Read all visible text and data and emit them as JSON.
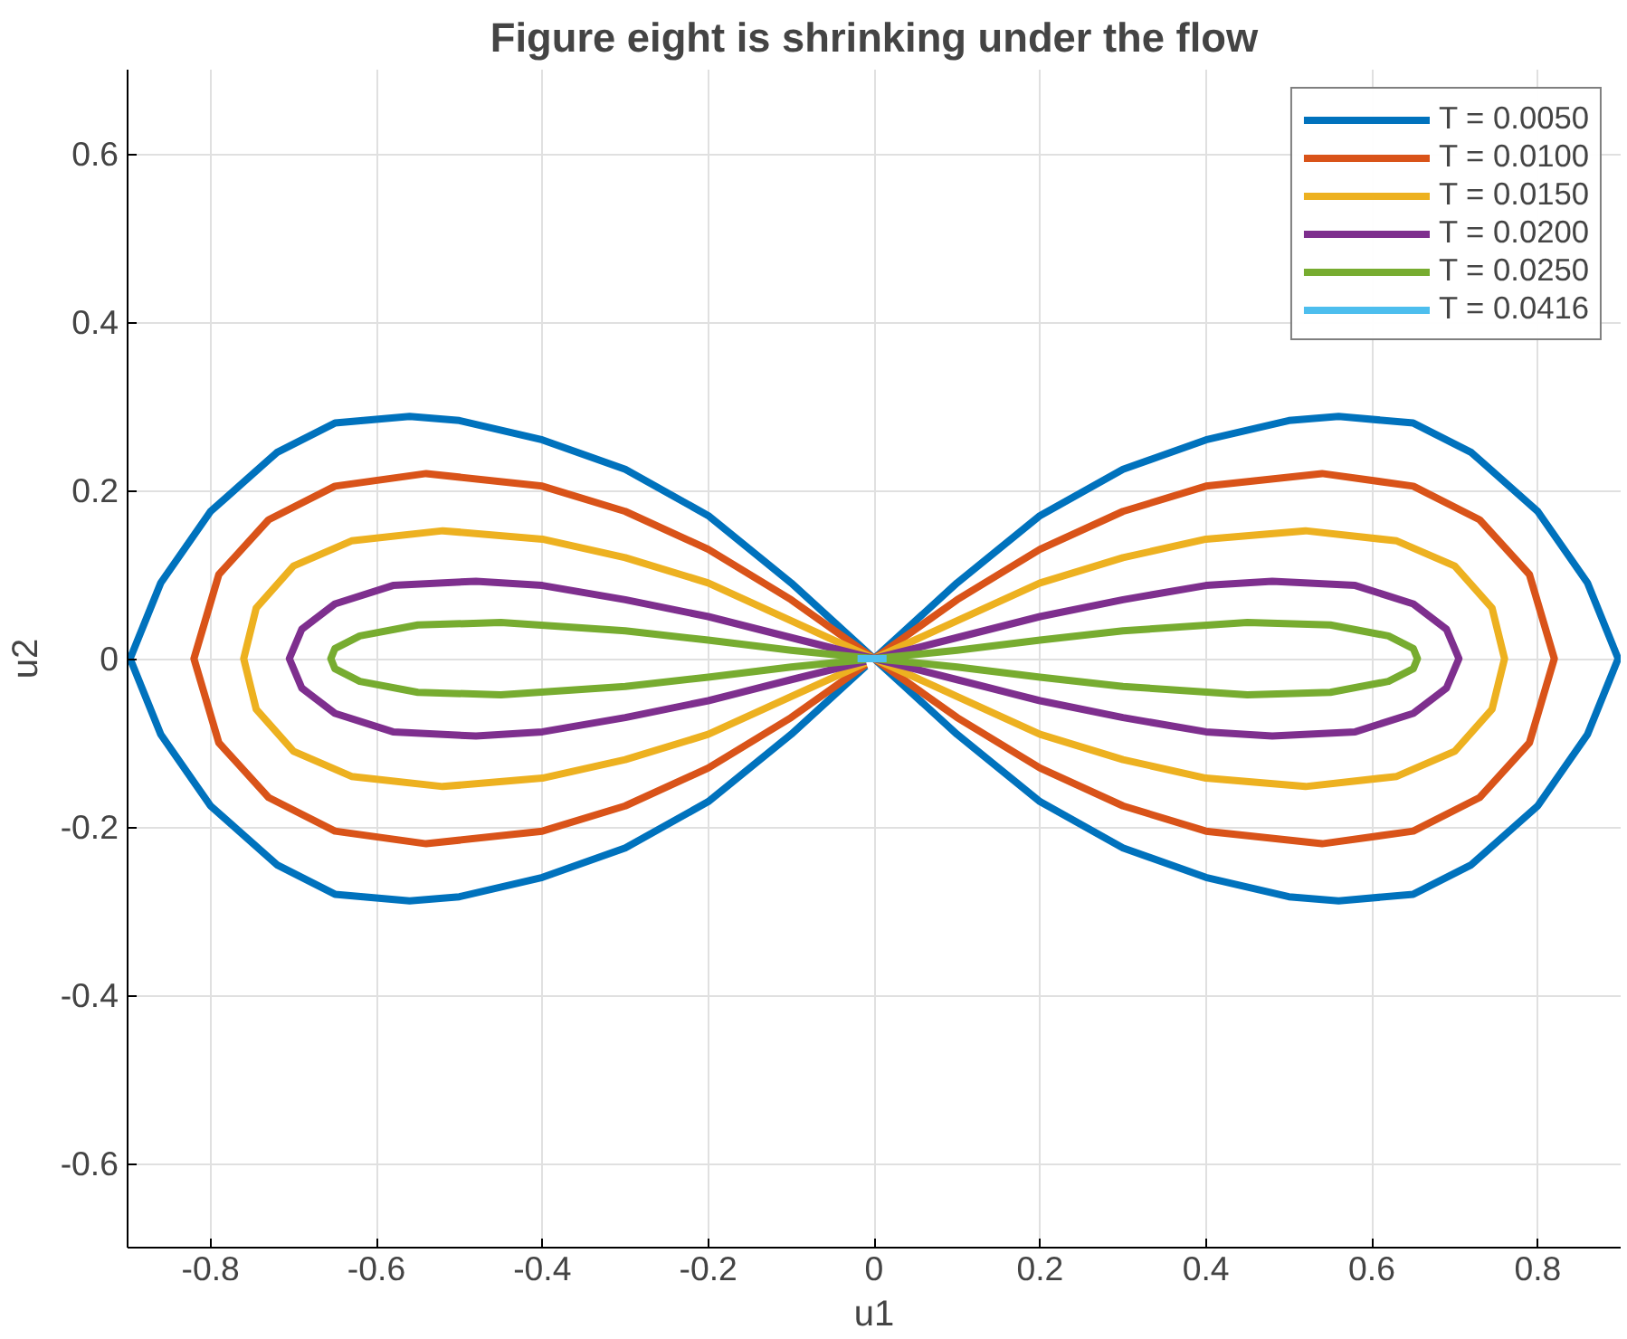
{
  "chart_data": {
    "type": "line",
    "title": "Figure eight is shrinking under the flow",
    "xlabel": "u1",
    "ylabel": "u2",
    "xlim": [
      -0.9,
      0.9
    ],
    "ylim": [
      -0.7,
      0.7
    ],
    "xticks": [
      -0.8,
      -0.6,
      -0.4,
      -0.2,
      0,
      0.2,
      0.4,
      0.6,
      0.8
    ],
    "yticks": [
      -0.6,
      -0.4,
      -0.2,
      0,
      0.2,
      0.4,
      0.6
    ],
    "grid": true,
    "legend": "top right",
    "line_style": "solid",
    "marker": "none",
    "series": [
      {
        "name": "T = 0.0050",
        "color": "#0072bd",
        "x": [
          0,
          0.1,
          0.2,
          0.3,
          0.4,
          0.5,
          0.56,
          0.65,
          0.72,
          0.8,
          0.86,
          0.897,
          0.86,
          0.8,
          0.72,
          0.65,
          0.56,
          0.5,
          0.4,
          0.3,
          0.2,
          0.1,
          0,
          -0.1,
          -0.2,
          -0.3,
          -0.4,
          -0.5,
          -0.56,
          -0.65,
          -0.72,
          -0.8,
          -0.86,
          -0.897,
          -0.86,
          -0.8,
          -0.72,
          -0.65,
          -0.56,
          -0.5,
          -0.4,
          -0.3,
          -0.2,
          -0.1,
          -0.01
        ],
        "values": [
          0,
          0.09,
          0.17,
          0.225,
          0.26,
          0.283,
          0.288,
          0.28,
          0.245,
          0.175,
          0.09,
          0,
          -0.09,
          -0.175,
          -0.245,
          -0.28,
          -0.288,
          -0.283,
          -0.26,
          -0.225,
          -0.17,
          -0.09,
          0,
          0.09,
          0.17,
          0.225,
          0.26,
          0.283,
          0.288,
          0.28,
          0.245,
          0.175,
          0.09,
          0,
          -0.09,
          -0.175,
          -0.245,
          -0.28,
          -0.288,
          -0.283,
          -0.26,
          -0.225,
          -0.17,
          -0.09,
          -0.009
        ]
      },
      {
        "name": "T = 0.0100",
        "color": "#d95319",
        "x": [
          0,
          0.1,
          0.2,
          0.3,
          0.4,
          0.54,
          0.65,
          0.73,
          0.79,
          0.82,
          0.79,
          0.73,
          0.65,
          0.54,
          0.4,
          0.3,
          0.2,
          0.1,
          0,
          -0.1,
          -0.2,
          -0.3,
          -0.4,
          -0.54,
          -0.65,
          -0.73,
          -0.79,
          -0.82,
          -0.79,
          -0.73,
          -0.65,
          -0.54,
          -0.4,
          -0.3,
          -0.2,
          -0.1,
          -0.01
        ],
        "values": [
          0,
          0.07,
          0.13,
          0.175,
          0.205,
          0.22,
          0.205,
          0.165,
          0.1,
          0,
          -0.1,
          -0.165,
          -0.205,
          -0.22,
          -0.205,
          -0.175,
          -0.13,
          -0.07,
          0,
          0.07,
          0.13,
          0.175,
          0.205,
          0.22,
          0.205,
          0.165,
          0.1,
          0,
          -0.1,
          -0.165,
          -0.205,
          -0.22,
          -0.205,
          -0.175,
          -0.13,
          -0.07,
          -0.007
        ]
      },
      {
        "name": "T = 0.0150",
        "color": "#edb120",
        "x": [
          0,
          0.1,
          0.2,
          0.3,
          0.4,
          0.52,
          0.63,
          0.7,
          0.745,
          0.76,
          0.745,
          0.7,
          0.63,
          0.52,
          0.4,
          0.3,
          0.2,
          0.1,
          0,
          -0.1,
          -0.2,
          -0.3,
          -0.4,
          -0.52,
          -0.63,
          -0.7,
          -0.745,
          -0.76,
          -0.745,
          -0.7,
          -0.63,
          -0.52,
          -0.4,
          -0.3,
          -0.2,
          -0.1,
          -0.01
        ],
        "values": [
          0,
          0.045,
          0.09,
          0.12,
          0.142,
          0.152,
          0.14,
          0.11,
          0.06,
          0,
          -0.06,
          -0.11,
          -0.14,
          -0.152,
          -0.142,
          -0.12,
          -0.09,
          -0.045,
          0,
          0.045,
          0.09,
          0.12,
          0.142,
          0.152,
          0.14,
          0.11,
          0.06,
          0,
          -0.06,
          -0.11,
          -0.14,
          -0.152,
          -0.142,
          -0.12,
          -0.09,
          -0.045,
          -0.005
        ]
      },
      {
        "name": "T = 0.0200",
        "color": "#7e2f8e",
        "x": [
          0,
          0.1,
          0.2,
          0.3,
          0.4,
          0.48,
          0.58,
          0.65,
          0.69,
          0.705,
          0.69,
          0.65,
          0.58,
          0.48,
          0.4,
          0.3,
          0.2,
          0.1,
          0,
          -0.1,
          -0.2,
          -0.3,
          -0.4,
          -0.48,
          -0.58,
          -0.65,
          -0.69,
          -0.705,
          -0.69,
          -0.65,
          -0.58,
          -0.48,
          -0.4,
          -0.3,
          -0.2,
          -0.1,
          -0.01
        ],
        "values": [
          0,
          0.025,
          0.05,
          0.07,
          0.087,
          0.092,
          0.087,
          0.065,
          0.035,
          0,
          -0.035,
          -0.065,
          -0.087,
          -0.092,
          -0.087,
          -0.07,
          -0.05,
          -0.025,
          0,
          0.025,
          0.05,
          0.07,
          0.087,
          0.092,
          0.087,
          0.065,
          0.035,
          0,
          -0.035,
          -0.065,
          -0.087,
          -0.092,
          -0.087,
          -0.07,
          -0.05,
          -0.025,
          -0.003
        ]
      },
      {
        "name": "T = 0.0250",
        "color": "#77ac30",
        "x": [
          0,
          0.1,
          0.2,
          0.3,
          0.45,
          0.55,
          0.62,
          0.65,
          0.655,
          0.65,
          0.62,
          0.55,
          0.45,
          0.3,
          0.2,
          0.1,
          0,
          -0.1,
          -0.2,
          -0.3,
          -0.45,
          -0.55,
          -0.62,
          -0.65,
          -0.655,
          -0.65,
          -0.62,
          -0.55,
          -0.45,
          -0.3,
          -0.2,
          -0.1,
          -0.01
        ],
        "values": [
          0,
          0.01,
          0.022,
          0.033,
          0.043,
          0.04,
          0.027,
          0.012,
          0,
          -0.012,
          -0.027,
          -0.04,
          -0.043,
          -0.033,
          -0.022,
          -0.01,
          0,
          0.01,
          0.022,
          0.033,
          0.043,
          0.04,
          0.027,
          0.012,
          0,
          -0.012,
          -0.027,
          -0.04,
          -0.043,
          -0.033,
          -0.022,
          -0.01,
          -0.001
        ]
      },
      {
        "name": "T = 0.0416",
        "color": "#4dbeee",
        "x": [
          -0.02,
          0.015
        ],
        "values": [
          0,
          0
        ]
      }
    ]
  }
}
